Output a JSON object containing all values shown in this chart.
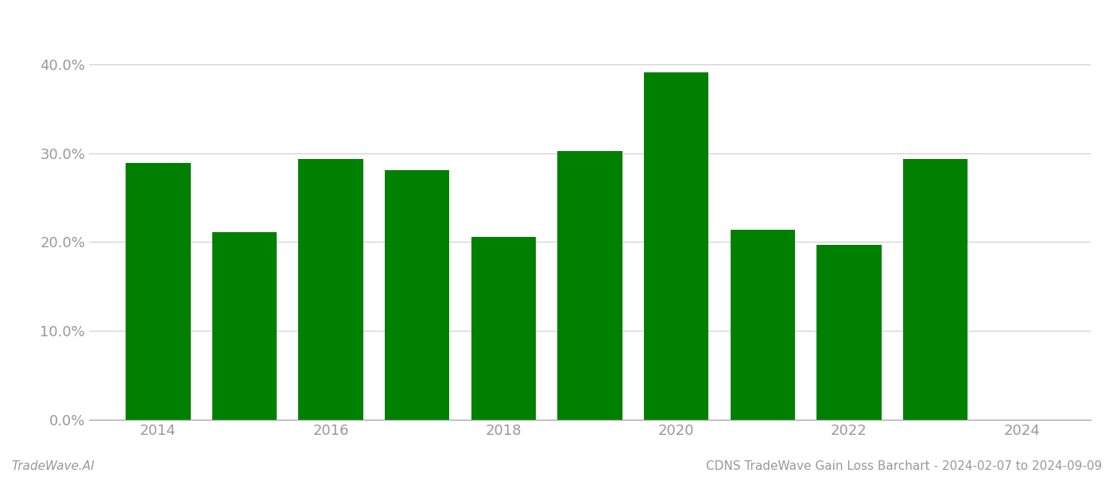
{
  "years": [
    2014,
    2015,
    2016,
    2017,
    2018,
    2019,
    2020,
    2021,
    2022,
    2023
  ],
  "values": [
    0.289,
    0.211,
    0.293,
    0.281,
    0.206,
    0.302,
    0.391,
    0.214,
    0.197,
    0.293
  ],
  "bar_color": "#008000",
  "background_color": "#ffffff",
  "grid_color": "#cccccc",
  "axis_label_color": "#999999",
  "footer_left": "TradeWave.AI",
  "footer_right": "CDNS TradeWave Gain Loss Barchart - 2024-02-07 to 2024-09-09",
  "ylim": [
    0,
    0.44
  ],
  "yticks": [
    0.0,
    0.1,
    0.2,
    0.3,
    0.4
  ],
  "xlim": [
    2013.2,
    2024.8
  ],
  "xticks": [
    2014,
    2016,
    2018,
    2020,
    2022,
    2024
  ],
  "bar_width": 0.75,
  "tick_fontsize": 13,
  "footer_fontsize": 11
}
